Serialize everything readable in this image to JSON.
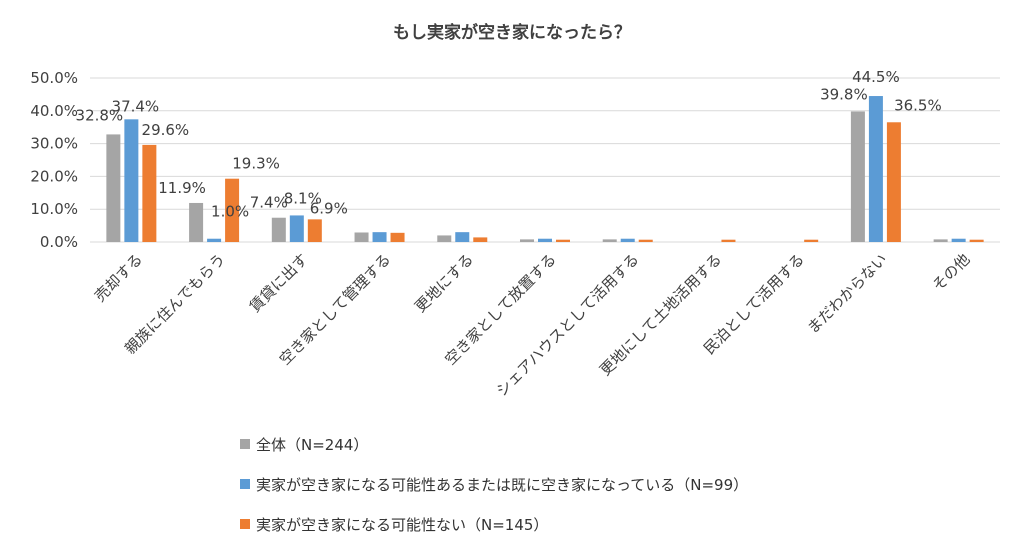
{
  "chart_data": {
    "type": "bar",
    "title": "もし実家が空き家になったら？",
    "categories": [
      "売却する",
      "親族に住んでもらう",
      "賃貸に出す",
      "空き家として管理する",
      "更地にする",
      "空き家として放置する",
      "シェアハウスとして活用する",
      "更地にして土地活用する",
      "民泊として活用する",
      "まだわからない",
      "その他"
    ],
    "series": [
      {
        "name": "全体（N=244）",
        "color": "#a5a5a5",
        "values": [
          32.8,
          11.9,
          7.4,
          2.9,
          2.0,
          0.8,
          0.8,
          0.0,
          0.0,
          39.8,
          0.8
        ]
      },
      {
        "name": "実家が空き家になる可能性あるまたは既に空き家になっている（N=99）",
        "color": "#5b9bd5",
        "values": [
          37.4,
          1.0,
          8.1,
          3.0,
          3.0,
          1.0,
          1.0,
          0.0,
          0.0,
          44.5,
          1.0
        ]
      },
      {
        "name": "実家が空き家になる可能性ない（N=145）",
        "color": "#ed7d31",
        "values": [
          29.6,
          19.3,
          6.9,
          2.8,
          1.4,
          0.7,
          0.7,
          0.7,
          0.7,
          36.5,
          0.7
        ]
      }
    ],
    "data_labels": [
      {
        "category": 0,
        "series": 0,
        "text": "32.8%"
      },
      {
        "category": 0,
        "series": 1,
        "text": "37.4%"
      },
      {
        "category": 0,
        "series": 2,
        "text": "29.6%"
      },
      {
        "category": 1,
        "series": 0,
        "text": "11.9%"
      },
      {
        "category": 1,
        "series": 1,
        "text": "1.0%"
      },
      {
        "category": 1,
        "series": 2,
        "text": "19.3%"
      },
      {
        "category": 2,
        "series": 0,
        "text": "7.4%"
      },
      {
        "category": 2,
        "series": 1,
        "text": "8.1%"
      },
      {
        "category": 2,
        "series": 2,
        "text": "6.9%"
      },
      {
        "category": 9,
        "series": 0,
        "text": "39.8%"
      },
      {
        "category": 9,
        "series": 1,
        "text": "44.5%"
      },
      {
        "category": 9,
        "series": 2,
        "text": "36.5%"
      }
    ],
    "ylim": [
      0,
      50
    ],
    "yticks": [
      "0.0%",
      "10.0%",
      "20.0%",
      "30.0%",
      "40.0%",
      "50.0%"
    ],
    "grid": true,
    "legend": "bottom"
  }
}
